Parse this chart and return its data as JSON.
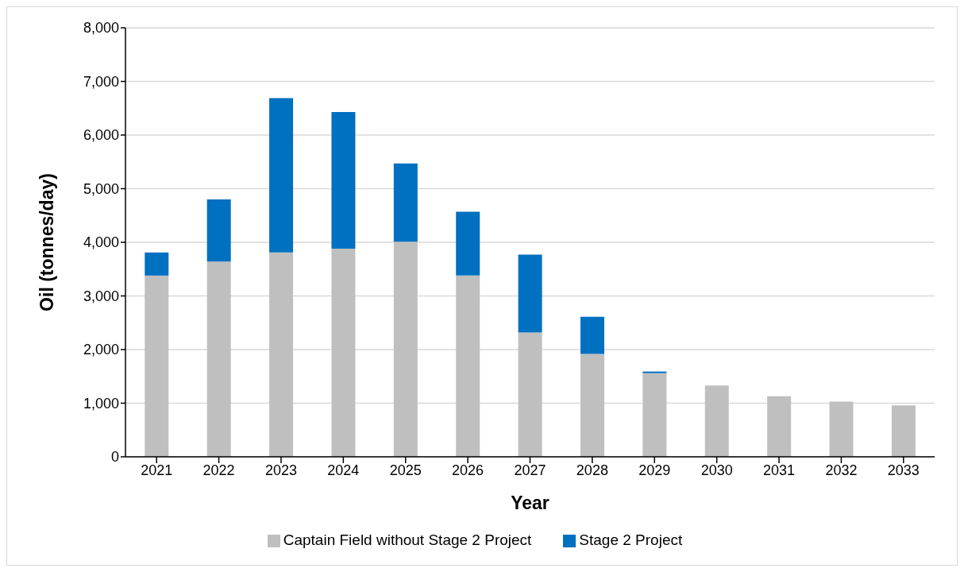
{
  "chart_data": {
    "type": "bar",
    "stacked": true,
    "xlabel": "Year",
    "ylabel": "Oil (tonnes/day)",
    "categories": [
      "2021",
      "2022",
      "2023",
      "2024",
      "2025",
      "2026",
      "2027",
      "2028",
      "2029",
      "2030",
      "2031",
      "2032",
      "2033"
    ],
    "series": [
      {
        "name": "Captain Field without Stage 2 Project",
        "color": "#bfbfbf",
        "values": [
          3380,
          3640,
          3810,
          3880,
          4010,
          3380,
          2320,
          1920,
          1560,
          1330,
          1130,
          1030,
          960
        ]
      },
      {
        "name": "Stage 2 Project",
        "color": "#0070c0",
        "values": [
          430,
          1160,
          2880,
          2550,
          1460,
          1190,
          1450,
          690,
          30,
          null,
          null,
          null,
          null
        ]
      }
    ],
    "ylim": [
      0,
      8000
    ],
    "yticks": [
      0,
      {
        "value": 1000,
        "label": "1,000"
      },
      {
        "value": 2000,
        "label": "2,000"
      },
      {
        "value": 3000,
        "label": "3,000"
      },
      {
        "value": 4000,
        "label": "4,000"
      },
      {
        "value": 5000,
        "label": "5,000"
      },
      {
        "value": 6000,
        "label": "6,000"
      },
      {
        "value": 7000,
        "label": "7,000"
      },
      {
        "value": 8000,
        "label": "8,000"
      }
    ],
    "grid": "y",
    "legend": "bottom"
  }
}
